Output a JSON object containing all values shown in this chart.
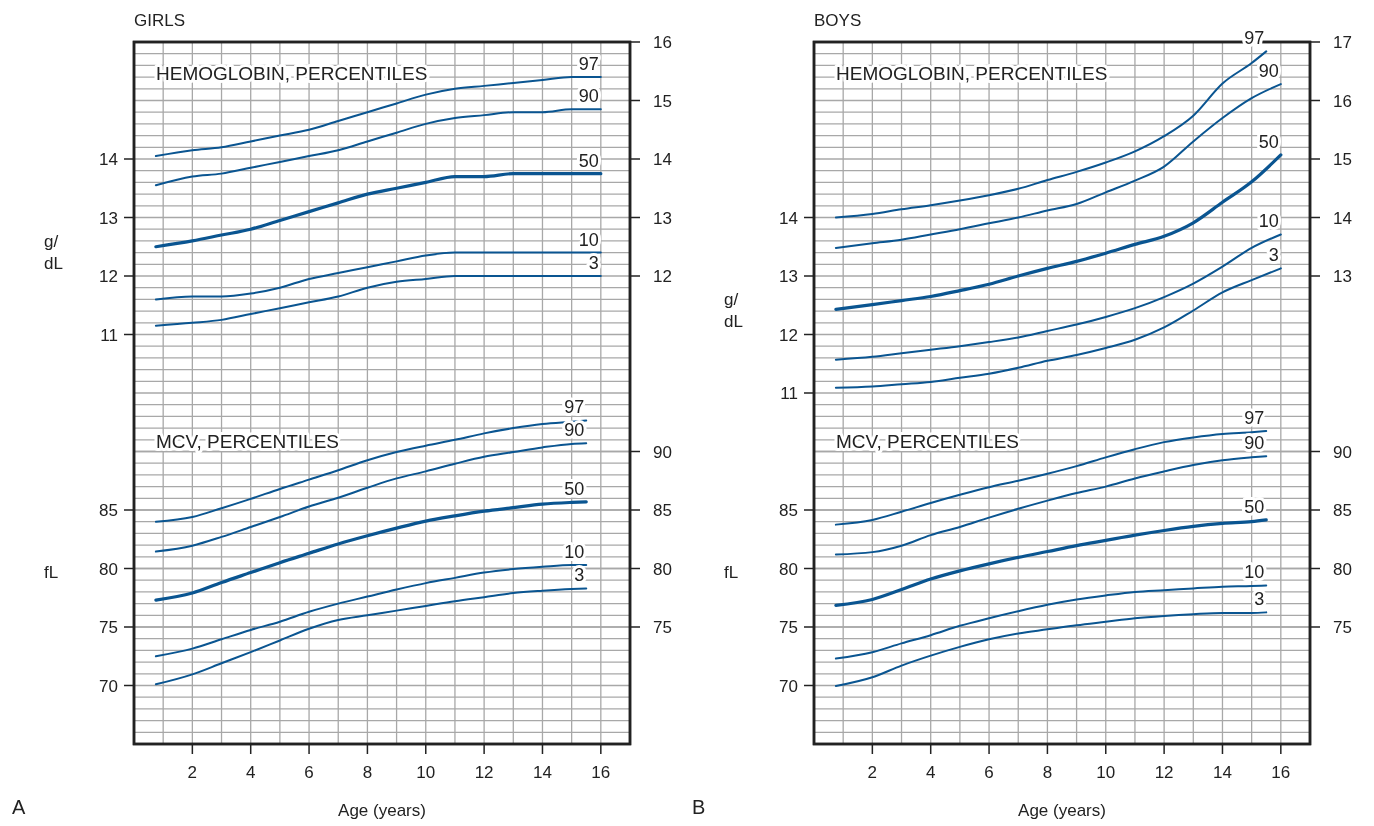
{
  "chart_data": [
    {
      "type": "line",
      "title": "GIRLS",
      "subtitle": "HEMOGLOBIN, PERCENTILES",
      "ylabel": "g/\ndL",
      "xlim": [
        0,
        17
      ],
      "ylim": [
        4,
        16
      ],
      "yticks": [
        11,
        12,
        13,
        14
      ],
      "y2lim": [
        4,
        16
      ],
      "y2ticks": [
        12,
        13,
        14,
        15,
        16
      ],
      "tick_labels": "y",
      "line_style": "solid",
      "marker": "none",
      "series": [
        {
          "name": "97",
          "color": "#0a5591",
          "x": [
            0.75,
            2,
            3,
            4,
            5,
            6,
            7,
            8,
            9,
            10,
            11,
            12,
            13,
            14,
            15,
            16
          ],
          "values": [
            14.05,
            14.15,
            14.2,
            14.3,
            14.4,
            14.5,
            14.65,
            14.8,
            14.95,
            15.1,
            15.2,
            15.25,
            15.3,
            15.35,
            15.4,
            15.4
          ]
        },
        {
          "name": "90",
          "color": "#0a5591",
          "x": [
            0.75,
            2,
            3,
            4,
            5,
            6,
            7,
            8,
            9,
            10,
            11,
            12,
            13,
            14,
            15,
            16
          ],
          "values": [
            13.55,
            13.7,
            13.75,
            13.85,
            13.95,
            14.05,
            14.15,
            14.3,
            14.45,
            14.6,
            14.7,
            14.75,
            14.8,
            14.8,
            14.85,
            14.85
          ]
        },
        {
          "name": "50",
          "color": "#0a5591",
          "x": [
            0.75,
            2,
            3,
            4,
            5,
            6,
            7,
            8,
            9,
            10,
            11,
            12,
            13,
            14,
            15,
            16
          ],
          "values": [
            12.5,
            12.6,
            12.7,
            12.8,
            12.95,
            13.1,
            13.25,
            13.4,
            13.5,
            13.6,
            13.7,
            13.7,
            13.75,
            13.75,
            13.75,
            13.75
          ]
        },
        {
          "name": "10",
          "color": "#0a5591",
          "x": [
            0.75,
            2,
            3,
            4,
            5,
            6,
            7,
            8,
            9,
            10,
            11,
            12,
            13,
            14,
            15,
            16
          ],
          "values": [
            11.6,
            11.65,
            11.65,
            11.7,
            11.8,
            11.95,
            12.05,
            12.15,
            12.25,
            12.35,
            12.4,
            12.4,
            12.4,
            12.4,
            12.4,
            12.4
          ]
        },
        {
          "name": "3",
          "color": "#0a5591",
          "x": [
            0.75,
            2,
            3,
            4,
            5,
            6,
            7,
            8,
            9,
            10,
            11,
            12,
            13,
            14,
            15,
            16
          ],
          "values": [
            11.15,
            11.2,
            11.25,
            11.35,
            11.45,
            11.55,
            11.65,
            11.8,
            11.9,
            11.95,
            12,
            12,
            12,
            12,
            12,
            12
          ]
        }
      ]
    },
    {
      "type": "line",
      "subtitle": "MCV, PERCENTILES",
      "xlabel": "Age (years)",
      "ylabel": "fL",
      "annotations": [
        "A"
      ],
      "xlim": [
        0,
        17
      ],
      "xticks": [
        {
          "value": 1,
          "label": null
        },
        2,
        {
          "value": 3,
          "label": null
        },
        4,
        {
          "value": 5,
          "label": null
        },
        6,
        {
          "value": 7,
          "label": null
        },
        8,
        {
          "value": 9,
          "label": null
        },
        10,
        {
          "value": 11,
          "label": null
        },
        12,
        {
          "value": 13,
          "label": null
        },
        14,
        {
          "value": 15,
          "label": null
        },
        16
      ],
      "ylim": [
        65,
        125
      ],
      "yticks": [
        {
          "value": 66,
          "label": null
        },
        {
          "value": 67,
          "label": null
        },
        {
          "value": 68,
          "label": null
        },
        {
          "value": 69,
          "label": null
        },
        70,
        {
          "value": 71,
          "label": null
        },
        {
          "value": 72,
          "label": null
        },
        {
          "value": 73,
          "label": null
        },
        {
          "value": 74,
          "label": null
        },
        75,
        {
          "value": 76,
          "label": null
        },
        {
          "value": 77,
          "label": null
        },
        {
          "value": 78,
          "label": null
        },
        {
          "value": 79,
          "label": null
        },
        80,
        {
          "value": 81,
          "label": null
        },
        {
          "value": 82,
          "label": null
        },
        {
          "value": 83,
          "label": null
        },
        {
          "value": 84,
          "label": null
        },
        85,
        {
          "value": 86,
          "label": null
        },
        {
          "value": 87,
          "label": null
        },
        {
          "value": 88,
          "label": null
        },
        {
          "value": 89,
          "label": null
        },
        {
          "value": 90,
          "label": null
        },
        {
          "value": 91,
          "label": null
        },
        {
          "value": 92,
          "label": null
        },
        {
          "value": 93,
          "label": null
        },
        {
          "value": 94,
          "label": null
        },
        {
          "value": 95,
          "label": null
        },
        {
          "value": 96,
          "label": null
        },
        {
          "value": 97,
          "label": null
        },
        {
          "value": 98,
          "label": null
        },
        {
          "value": 99,
          "label": null
        },
        {
          "value": 100,
          "label": null
        },
        {
          "value": 101,
          "label": null
        },
        {
          "value": 102,
          "label": null
        },
        {
          "value": 103,
          "label": null
        },
        {
          "value": 104,
          "label": null
        },
        {
          "value": 105,
          "label": null
        },
        {
          "value": 106,
          "label": null
        },
        {
          "value": 107,
          "label": null
        },
        {
          "value": 108,
          "label": null
        },
        {
          "value": 109,
          "label": null
        },
        {
          "value": 110,
          "label": null
        },
        {
          "value": 111,
          "label": null
        },
        {
          "value": 112,
          "label": null
        },
        {
          "value": 113,
          "label": null
        },
        {
          "value": 114,
          "label": null
        },
        {
          "value": 115,
          "label": null
        },
        {
          "value": 116,
          "label": null
        },
        {
          "value": 117,
          "label": null
        },
        {
          "value": 118,
          "label": null
        },
        {
          "value": 119,
          "label": null
        },
        {
          "value": 120,
          "label": null
        },
        {
          "value": 121,
          "label": null
        },
        {
          "value": 122,
          "label": null
        },
        {
          "value": 123,
          "label": null
        },
        {
          "value": 124,
          "label": null
        }
      ],
      "y2lim": [
        65,
        125
      ],
      "y2ticks": [
        75,
        80,
        85,
        90
      ],
      "grid": true,
      "line_style": "solid",
      "marker": "none",
      "series": [
        {
          "name": "97",
          "color": "#0a5591",
          "x": [
            0.75,
            2,
            3,
            4,
            5,
            6,
            7,
            8,
            9,
            10,
            11,
            12,
            13,
            14,
            15,
            15.5
          ],
          "values": [
            84,
            84.4,
            85.15,
            85.95,
            86.8,
            87.6,
            88.4,
            89.25,
            89.95,
            90.5,
            91,
            91.55,
            92,
            92.35,
            92.55,
            92.65
          ]
        },
        {
          "name": "90",
          "color": "#0a5591",
          "x": [
            0.75,
            2,
            3,
            4,
            5,
            6,
            7,
            8,
            9,
            10,
            11,
            12,
            13,
            14,
            15,
            15.5
          ],
          "values": [
            81.45,
            81.95,
            82.7,
            83.55,
            84.4,
            85.3,
            86.05,
            86.9,
            87.7,
            88.3,
            88.95,
            89.55,
            89.95,
            90.35,
            90.65,
            90.7
          ]
        },
        {
          "name": "50",
          "color": "#0a5591",
          "x": [
            0.75,
            2,
            3,
            4,
            5,
            6,
            7,
            8,
            9,
            10,
            11,
            12,
            13,
            14,
            15,
            15.5
          ],
          "values": [
            77.3,
            77.9,
            78.8,
            79.65,
            80.5,
            81.3,
            82.1,
            82.8,
            83.45,
            84.05,
            84.5,
            84.9,
            85.2,
            85.5,
            85.65,
            85.7
          ]
        },
        {
          "name": "10",
          "color": "#0a5591",
          "x": [
            0.75,
            2,
            3,
            4,
            5,
            6,
            7,
            8,
            9,
            10,
            11,
            12,
            13,
            14,
            15,
            15.5
          ],
          "values": [
            72.5,
            73.15,
            73.95,
            74.75,
            75.45,
            76.3,
            77,
            77.6,
            78.2,
            78.75,
            79.2,
            79.65,
            79.95,
            80.15,
            80.3,
            80.3
          ]
        },
        {
          "name": "3",
          "color": "#0a5591",
          "x": [
            0.75,
            2,
            3,
            4,
            5,
            6,
            7,
            8,
            9,
            10,
            11,
            12,
            13,
            14,
            15,
            15.5
          ],
          "values": [
            70.1,
            70.95,
            71.9,
            72.85,
            73.85,
            74.85,
            75.6,
            76,
            76.4,
            76.8,
            77.2,
            77.55,
            77.9,
            78.1,
            78.25,
            78.3
          ]
        }
      ]
    },
    {
      "type": "line",
      "title": "BOYS",
      "subtitle": "HEMOGLOBIN, PERCENTILES",
      "ylabel": "g/\ndL",
      "xlim": [
        0,
        17
      ],
      "ylim": [
        5,
        17
      ],
      "yticks": [
        11,
        12,
        13,
        14
      ],
      "y2lim": [
        5,
        17
      ],
      "y2ticks": [
        13,
        14,
        15,
        16,
        17
      ],
      "tick_labels": "y",
      "line_style": "solid",
      "marker": "none",
      "series": [
        {
          "name": "97",
          "color": "#0a5591",
          "x": [
            0.75,
            2,
            3,
            4,
            5,
            6,
            7,
            8,
            9,
            10,
            11,
            12,
            13,
            14,
            15,
            15.5
          ],
          "values": [
            14,
            14.06,
            14.14,
            14.21,
            14.29,
            14.38,
            14.49,
            14.64,
            14.78,
            14.94,
            15.13,
            15.39,
            15.74,
            16.29,
            16.64,
            16.84
          ]
        },
        {
          "name": "90",
          "color": "#0a5591",
          "x": [
            0.75,
            2,
            3,
            4,
            5,
            6,
            7,
            8,
            9,
            10,
            11,
            12,
            13,
            14,
            15,
            16
          ],
          "values": [
            13.48,
            13.56,
            13.62,
            13.71,
            13.8,
            13.9,
            14,
            14.12,
            14.23,
            14.43,
            14.63,
            14.87,
            15.3,
            15.7,
            16.04,
            16.28
          ]
        },
        {
          "name": "50",
          "color": "#0a5591",
          "x": [
            0.75,
            2,
            3,
            4,
            5,
            6,
            7,
            8,
            9,
            10,
            11,
            12,
            13,
            14,
            15,
            16
          ],
          "values": [
            12.43,
            12.51,
            12.58,
            12.65,
            12.75,
            12.86,
            13,
            13.13,
            13.25,
            13.39,
            13.54,
            13.68,
            13.91,
            14.26,
            14.61,
            15.07
          ]
        },
        {
          "name": "10",
          "color": "#0a5591",
          "x": [
            0.75,
            2,
            3,
            4,
            5,
            6,
            7,
            8,
            9,
            10,
            11,
            12,
            13,
            14,
            15,
            16
          ],
          "values": [
            11.57,
            11.62,
            11.68,
            11.74,
            11.8,
            11.87,
            11.95,
            12.06,
            12.17,
            12.3,
            12.45,
            12.64,
            12.87,
            13.16,
            13.48,
            13.71
          ]
        },
        {
          "name": "3",
          "color": "#0a5591",
          "x": [
            0.75,
            2,
            3,
            4,
            5,
            6,
            7,
            8,
            9,
            10,
            11,
            12,
            13,
            14,
            15,
            16
          ],
          "values": [
            11.09,
            11.11,
            11.15,
            11.19,
            11.26,
            11.33,
            11.43,
            11.55,
            11.65,
            11.77,
            11.91,
            12.12,
            12.41,
            12.72,
            12.93,
            13.13
          ]
        }
      ]
    },
    {
      "type": "line",
      "subtitle": "MCV, PERCENTILES",
      "xlabel": "Age (years)",
      "ylabel": "fL",
      "annotations": [
        "B"
      ],
      "xlim": [
        0,
        17
      ],
      "xticks": [
        {
          "value": 1,
          "label": null
        },
        2,
        {
          "value": 3,
          "label": null
        },
        4,
        {
          "value": 5,
          "label": null
        },
        6,
        {
          "value": 7,
          "label": null
        },
        8,
        {
          "value": 9,
          "label": null
        },
        10,
        {
          "value": 11,
          "label": null
        },
        12,
        {
          "value": 13,
          "label": null
        },
        14,
        {
          "value": 15,
          "label": null
        },
        16
      ],
      "ylim": [
        65,
        125
      ],
      "yticks": [
        {
          "value": 66,
          "label": null
        },
        {
          "value": 67,
          "label": null
        },
        {
          "value": 68,
          "label": null
        },
        {
          "value": 69,
          "label": null
        },
        70,
        {
          "value": 71,
          "label": null
        },
        {
          "value": 72,
          "label": null
        },
        {
          "value": 73,
          "label": null
        },
        {
          "value": 74,
          "label": null
        },
        75,
        {
          "value": 76,
          "label": null
        },
        {
          "value": 77,
          "label": null
        },
        {
          "value": 78,
          "label": null
        },
        {
          "value": 79,
          "label": null
        },
        80,
        {
          "value": 81,
          "label": null
        },
        {
          "value": 82,
          "label": null
        },
        {
          "value": 83,
          "label": null
        },
        {
          "value": 84,
          "label": null
        },
        85,
        {
          "value": 86,
          "label": null
        },
        {
          "value": 87,
          "label": null
        },
        {
          "value": 88,
          "label": null
        },
        {
          "value": 89,
          "label": null
        },
        {
          "value": 90,
          "label": null
        },
        {
          "value": 91,
          "label": null
        },
        {
          "value": 92,
          "label": null
        },
        {
          "value": 93,
          "label": null
        },
        {
          "value": 94,
          "label": null
        },
        {
          "value": 95,
          "label": null
        },
        {
          "value": 96,
          "label": null
        },
        {
          "value": 97,
          "label": null
        },
        {
          "value": 98,
          "label": null
        },
        {
          "value": 99,
          "label": null
        },
        {
          "value": 100,
          "label": null
        },
        {
          "value": 101,
          "label": null
        },
        {
          "value": 102,
          "label": null
        },
        {
          "value": 103,
          "label": null
        },
        {
          "value": 104,
          "label": null
        },
        {
          "value": 105,
          "label": null
        },
        {
          "value": 106,
          "label": null
        },
        {
          "value": 107,
          "label": null
        },
        {
          "value": 108,
          "label": null
        },
        {
          "value": 109,
          "label": null
        },
        {
          "value": 110,
          "label": null
        },
        {
          "value": 111,
          "label": null
        },
        {
          "value": 112,
          "label": null
        },
        {
          "value": 113,
          "label": null
        },
        {
          "value": 114,
          "label": null
        },
        {
          "value": 115,
          "label": null
        },
        {
          "value": 116,
          "label": null
        },
        {
          "value": 117,
          "label": null
        },
        {
          "value": 118,
          "label": null
        },
        {
          "value": 119,
          "label": null
        },
        {
          "value": 120,
          "label": null
        },
        {
          "value": 121,
          "label": null
        },
        {
          "value": 122,
          "label": null
        },
        {
          "value": 123,
          "label": null
        },
        {
          "value": 124,
          "label": null
        }
      ],
      "y2lim": [
        65,
        125
      ],
      "y2ticks": [
        75,
        80,
        85,
        90
      ],
      "grid": true,
      "line_style": "solid",
      "marker": "none",
      "series": [
        {
          "name": "97",
          "color": "#0a5591",
          "x": [
            0.75,
            2,
            3,
            4,
            5,
            6,
            7,
            8,
            9,
            10,
            11,
            12,
            13,
            14,
            15,
            15.5
          ],
          "values": [
            83.75,
            84.15,
            84.85,
            85.6,
            86.3,
            86.95,
            87.5,
            88.1,
            88.75,
            89.5,
            90.2,
            90.8,
            91.2,
            91.5,
            91.65,
            91.75
          ]
        },
        {
          "name": "90",
          "color": "#0a5591",
          "x": [
            0.75,
            2,
            3,
            4,
            5,
            6,
            7,
            8,
            9,
            10,
            11,
            12,
            13,
            14,
            15,
            15.5
          ],
          "values": [
            81.2,
            81.4,
            81.95,
            82.85,
            83.55,
            84.35,
            85.1,
            85.8,
            86.45,
            87,
            87.7,
            88.3,
            88.85,
            89.25,
            89.5,
            89.6
          ]
        },
        {
          "name": "50",
          "color": "#0a5591",
          "x": [
            0.75,
            2,
            3,
            4,
            5,
            6,
            7,
            8,
            9,
            10,
            11,
            12,
            13,
            14,
            15,
            15.5
          ],
          "values": [
            76.85,
            77.35,
            78.2,
            79.1,
            79.8,
            80.4,
            80.95,
            81.45,
            81.95,
            82.4,
            82.85,
            83.25,
            83.6,
            83.85,
            84,
            84.15
          ]
        },
        {
          "name": "10",
          "color": "#0a5591",
          "x": [
            0.75,
            2,
            3,
            4,
            5,
            6,
            7,
            8,
            9,
            10,
            11,
            12,
            13,
            14,
            15,
            15.5
          ],
          "values": [
            72.3,
            72.85,
            73.6,
            74.3,
            75.1,
            75.75,
            76.35,
            76.9,
            77.35,
            77.7,
            78,
            78.15,
            78.3,
            78.45,
            78.5,
            78.55
          ]
        },
        {
          "name": "3",
          "color": "#0a5591",
          "x": [
            0.75,
            2,
            3,
            4,
            5,
            6,
            7,
            8,
            9,
            10,
            11,
            12,
            13,
            14,
            15,
            15.5
          ],
          "values": [
            69.95,
            70.7,
            71.7,
            72.55,
            73.3,
            73.95,
            74.45,
            74.8,
            75.15,
            75.45,
            75.75,
            75.95,
            76.1,
            76.2,
            76.2,
            76.25
          ]
        }
      ]
    }
  ]
}
